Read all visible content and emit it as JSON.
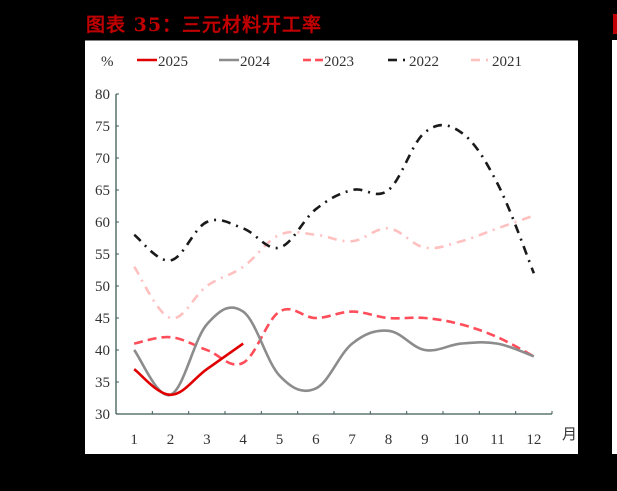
{
  "title": "图表 35：三元材料开工率",
  "legend": {
    "unit": "%",
    "items": [
      {
        "label": "2025",
        "color": "#e00000",
        "dash": "none"
      },
      {
        "label": "2024",
        "color": "#8c8c8c",
        "dash": "none"
      },
      {
        "label": "2023",
        "color": "#ff4d5a",
        "dash": "dash"
      },
      {
        "label": "2022",
        "color": "#1a1a1a",
        "dash": "dash-dot"
      },
      {
        "label": "2021",
        "color": "#ffc0c0",
        "dash": "dash-dot"
      }
    ]
  },
  "axis": {
    "x_unit": "月",
    "y_ticks": [
      "80",
      "75",
      "70",
      "65",
      "60",
      "55",
      "50",
      "45",
      "40",
      "35",
      "30"
    ],
    "x_ticks": [
      "1",
      "2",
      "3",
      "4",
      "5",
      "6",
      "7",
      "8",
      "9",
      "10",
      "11",
      "12"
    ]
  },
  "chart_data": {
    "type": "line",
    "title": "图表 35：三元材料开工率",
    "xlabel": "月",
    "ylabel": "%",
    "ylim": [
      30,
      80
    ],
    "categories": [
      "1",
      "2",
      "3",
      "4",
      "5",
      "6",
      "7",
      "8",
      "9",
      "10",
      "11",
      "12"
    ],
    "grid": false,
    "legend_position": "top",
    "series": [
      {
        "name": "2025",
        "values": [
          37,
          33,
          37,
          41
        ]
      },
      {
        "name": "2024",
        "values": [
          40,
          33,
          44,
          46,
          36,
          34,
          41,
          43,
          40,
          41,
          41,
          39
        ]
      },
      {
        "name": "2023",
        "values": [
          41,
          42,
          40,
          38,
          46,
          45,
          46,
          45,
          45,
          44,
          42,
          39
        ]
      },
      {
        "name": "2022",
        "values": [
          58,
          54,
          60,
          59,
          56,
          62,
          65,
          65,
          74,
          74,
          66,
          52
        ]
      },
      {
        "name": "2021",
        "values": [
          53,
          45,
          50,
          53,
          58,
          58,
          57,
          59,
          56,
          57,
          59,
          61
        ]
      }
    ]
  }
}
